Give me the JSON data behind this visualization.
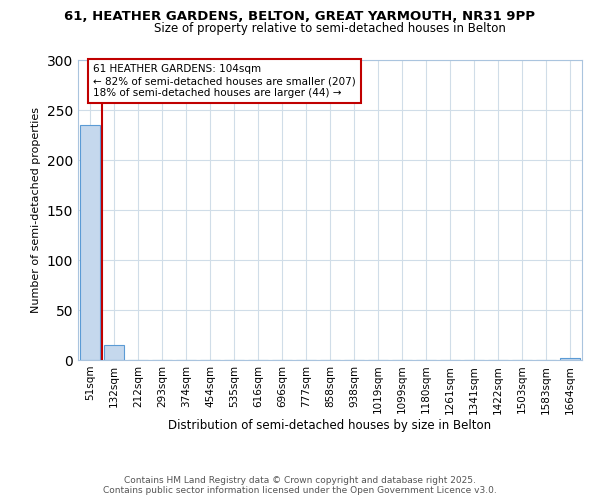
{
  "title1": "61, HEATHER GARDENS, BELTON, GREAT YARMOUTH, NR31 9PP",
  "title2": "Size of property relative to semi-detached houses in Belton",
  "xlabel": "Distribution of semi-detached houses by size in Belton",
  "ylabel": "Number of semi-detached properties",
  "bins": [
    "51sqm",
    "132sqm",
    "212sqm",
    "293sqm",
    "374sqm",
    "454sqm",
    "535sqm",
    "616sqm",
    "696sqm",
    "777sqm",
    "858sqm",
    "938sqm",
    "1019sqm",
    "1099sqm",
    "1180sqm",
    "1261sqm",
    "1341sqm",
    "1422sqm",
    "1503sqm",
    "1583sqm",
    "1664sqm"
  ],
  "values": [
    235,
    15,
    0,
    0,
    0,
    0,
    0,
    0,
    0,
    0,
    0,
    0,
    0,
    0,
    0,
    0,
    0,
    0,
    0,
    0,
    2
  ],
  "bar_color": "#c5d8ed",
  "bar_edge_color": "#5b9bd5",
  "property_line_color": "#c00000",
  "property_line_x": 0.5,
  "ylim": [
    0,
    300
  ],
  "yticks": [
    0,
    50,
    100,
    150,
    200,
    250,
    300
  ],
  "annotation_text": "61 HEATHER GARDENS: 104sqm\n← 82% of semi-detached houses are smaller (207)\n18% of semi-detached houses are larger (44) →",
  "annotation_box_color": "#c00000",
  "footer1": "Contains HM Land Registry data © Crown copyright and database right 2025.",
  "footer2": "Contains public sector information licensed under the Open Government Licence v3.0.",
  "bg_color": "#ffffff",
  "grid_color": "#d0dde8",
  "title1_fontsize": 9.5,
  "title2_fontsize": 8.5,
  "ylabel_fontsize": 8,
  "xlabel_fontsize": 8.5,
  "tick_fontsize": 7.5,
  "annot_fontsize": 7.5,
  "footer_fontsize": 6.5
}
